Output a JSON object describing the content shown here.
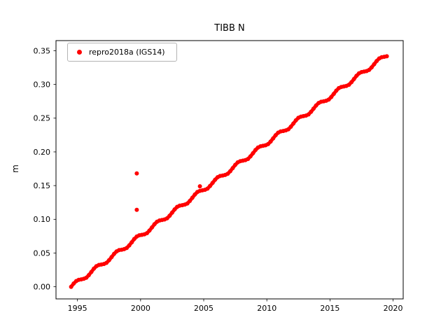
{
  "chart_data": {
    "type": "scatter",
    "title": "TIBB N",
    "xlabel": "",
    "ylabel": "m",
    "xlim": [
      1993.3,
      2020.8
    ],
    "ylim": [
      -0.018,
      0.365
    ],
    "grid": false,
    "legend": {
      "position": "upper left",
      "entries": [
        {
          "label": "repro2018a (IGS14)",
          "marker": "dot",
          "color": "#ff0000"
        }
      ]
    },
    "x_ticks": [
      {
        "value": 1995,
        "label": "1995"
      },
      {
        "value": 2000,
        "label": "2000"
      },
      {
        "value": 2005,
        "label": "2005"
      },
      {
        "value": 2010,
        "label": "2010"
      },
      {
        "value": 2015,
        "label": "2015"
      },
      {
        "value": 2020,
        "label": "2020"
      }
    ],
    "y_ticks": [
      {
        "value": 0.0,
        "label": "0.00"
      },
      {
        "value": 0.05,
        "label": "0.05"
      },
      {
        "value": 0.1,
        "label": "0.10"
      },
      {
        "value": 0.15,
        "label": "0.15"
      },
      {
        "value": 0.2,
        "label": "0.20"
      },
      {
        "value": 0.25,
        "label": "0.25"
      },
      {
        "value": 0.3,
        "label": "0.30"
      },
      {
        "value": 0.35,
        "label": "0.35"
      }
    ],
    "series": [
      {
        "name": "repro2018a (IGS14)",
        "color": "#ff0000",
        "marker": ".",
        "x": [
          1994.5,
          1994.7,
          1994.9,
          1995.1,
          1995.3,
          1995.5,
          1995.7,
          1995.9,
          1996.1,
          1996.3,
          1996.5,
          1996.7,
          1996.9,
          1997.1,
          1997.3,
          1997.5,
          1997.7,
          1997.9,
          1998.1,
          1998.3,
          1998.5,
          1998.7,
          1998.9,
          1999.1,
          1999.3,
          1999.5,
          1999.7,
          1999.9,
          2000.1,
          2000.3,
          2000.5,
          2000.7,
          2000.9,
          2001.1,
          2001.3,
          2001.5,
          2001.7,
          2001.9,
          2002.1,
          2002.3,
          2002.5,
          2002.7,
          2002.9,
          2003.1,
          2003.3,
          2003.5,
          2003.7,
          2003.9,
          2004.1,
          2004.3,
          2004.5,
          2004.7,
          2004.9,
          2005.1,
          2005.3,
          2005.5,
          2005.7,
          2005.9,
          2006.1,
          2006.3,
          2006.5,
          2006.7,
          2006.9,
          2007.1,
          2007.3,
          2007.5,
          2007.7,
          2007.9,
          2008.1,
          2008.3,
          2008.5,
          2008.7,
          2008.9,
          2009.1,
          2009.3,
          2009.5,
          2009.7,
          2009.9,
          2010.1,
          2010.3,
          2010.5,
          2010.7,
          2010.9,
          2011.1,
          2011.3,
          2011.5,
          2011.7,
          2011.9,
          2012.1,
          2012.3,
          2012.5,
          2012.7,
          2012.9,
          2013.1,
          2013.3,
          2013.5,
          2013.7,
          2013.9,
          2014.1,
          2014.3,
          2014.5,
          2014.7,
          2014.9,
          2015.1,
          2015.3,
          2015.5,
          2015.7,
          2015.9,
          2016.1,
          2016.3,
          2016.5,
          2016.7,
          2016.9,
          2017.1,
          2017.3,
          2017.5,
          2017.7,
          2017.9,
          2018.1,
          2018.3,
          2018.5,
          2018.7,
          2018.9,
          2019.1,
          2019.3,
          2019.5
        ],
        "y": [
          0.0,
          0.0048,
          0.0085,
          0.0103,
          0.011,
          0.0118,
          0.0135,
          0.0173,
          0.022,
          0.0268,
          0.0305,
          0.0323,
          0.033,
          0.0338,
          0.0355,
          0.0393,
          0.044,
          0.0488,
          0.0525,
          0.0543,
          0.055,
          0.0558,
          0.0575,
          0.0613,
          0.066,
          0.0708,
          0.0745,
          0.0763,
          0.077,
          0.0778,
          0.0795,
          0.0833,
          0.088,
          0.0928,
          0.0965,
          0.0983,
          0.099,
          0.0998,
          0.1015,
          0.1053,
          0.11,
          0.1148,
          0.1185,
          0.1203,
          0.121,
          0.1218,
          0.1235,
          0.1273,
          0.132,
          0.1368,
          0.1405,
          0.1423,
          0.143,
          0.1438,
          0.1455,
          0.1493,
          0.154,
          0.1588,
          0.1625,
          0.1643,
          0.165,
          0.1658,
          0.1675,
          0.1713,
          0.176,
          0.1808,
          0.1845,
          0.1863,
          0.187,
          0.1878,
          0.1895,
          0.1933,
          0.198,
          0.2028,
          0.2065,
          0.2083,
          0.209,
          0.2098,
          0.2115,
          0.2153,
          0.22,
          0.2248,
          0.2285,
          0.2303,
          0.231,
          0.2318,
          0.2335,
          0.2373,
          0.242,
          0.2468,
          0.2505,
          0.2523,
          0.253,
          0.2538,
          0.2555,
          0.2593,
          0.264,
          0.2688,
          0.2725,
          0.2743,
          0.275,
          0.2758,
          0.2775,
          0.2813,
          0.286,
          0.2908,
          0.2945,
          0.2963,
          0.297,
          0.2978,
          0.2995,
          0.3033,
          0.308,
          0.3128,
          0.3165,
          0.3183,
          0.319,
          0.3198,
          0.3215,
          0.3253,
          0.33,
          0.3348,
          0.3385,
          0.3403,
          0.341,
          0.3418
        ]
      }
    ],
    "outliers": [
      {
        "x": 1999.7,
        "y": 0.168
      },
      {
        "x": 1999.7,
        "y": 0.114
      },
      {
        "x": 2004.7,
        "y": 0.149
      }
    ]
  }
}
